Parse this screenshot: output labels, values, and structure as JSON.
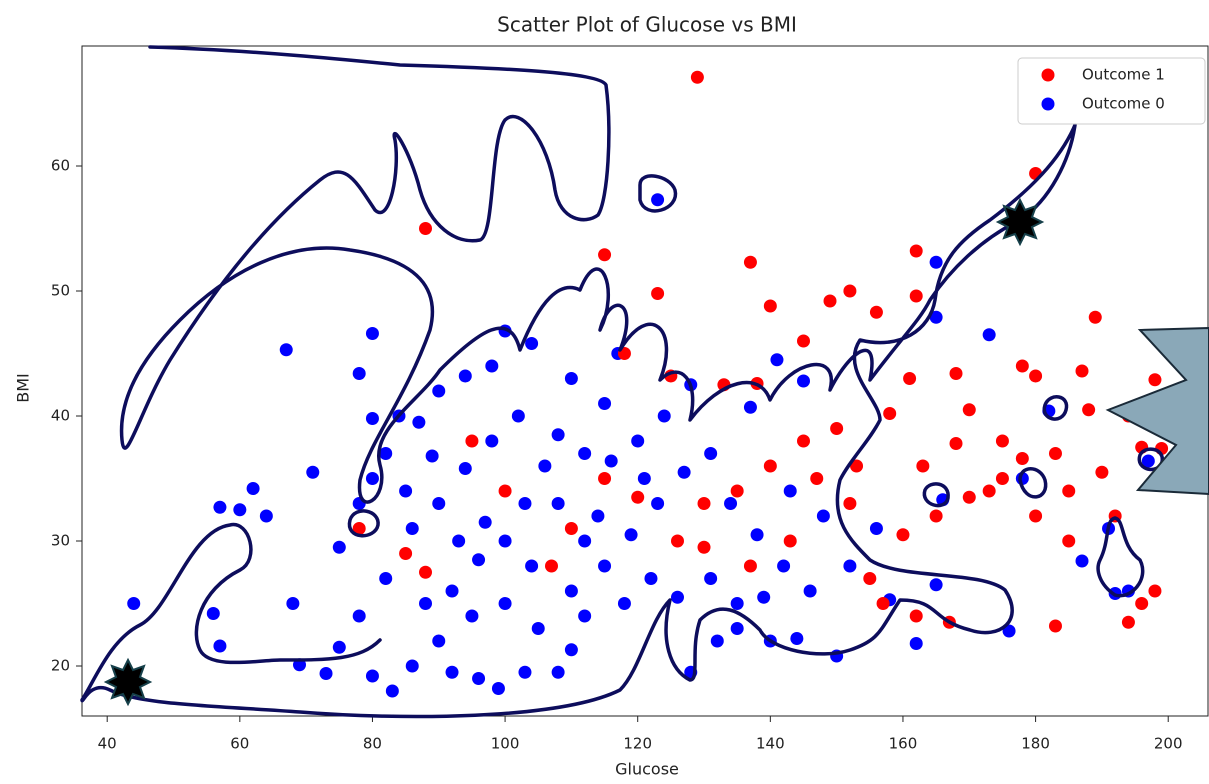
{
  "chart_data": {
    "type": "scatter",
    "title": "Scatter Plot of Glucose vs BMI",
    "x_label": "Glucose",
    "y_label": "BMI",
    "xlim": [
      36.2,
      206
    ],
    "ylim": [
      16,
      69.6
    ],
    "xticks": [
      40,
      60,
      80,
      100,
      120,
      140,
      160,
      180,
      200
    ],
    "yticks": [
      20,
      30,
      40,
      50,
      60
    ],
    "legend": "upper right",
    "series": [
      {
        "name": "Outcome 1",
        "color": "#ff0000",
        "x": [
          129,
          180,
          88,
          162,
          115,
          137,
          189,
          149,
          152,
          162,
          123,
          140,
          156,
          178,
          187,
          198,
          168,
          180,
          194,
          196,
          190,
          183,
          175,
          170,
          165,
          160,
          155,
          157,
          162,
          167,
          183,
          194,
          196,
          198,
          185,
          180,
          173,
          168,
          158,
          150,
          145,
          140,
          135,
          130,
          126,
          120,
          115,
          110,
          107,
          100,
          95,
          88,
          85,
          78,
          125,
          133,
          138,
          147,
          152,
          143,
          137,
          130,
          118,
          145,
          170,
          175,
          185,
          192,
          163,
          178,
          188,
          199,
          153,
          161
        ],
        "y": [
          67.1,
          59.4,
          55,
          53.2,
          52.9,
          52.3,
          47.9,
          49.2,
          50,
          49.6,
          49.8,
          48.8,
          48.3,
          44,
          43.6,
          42.9,
          43.4,
          43.2,
          40,
          37.5,
          35.5,
          37,
          35,
          33.5,
          32,
          30.5,
          27,
          25,
          24,
          23.5,
          23.2,
          23.5,
          25,
          26,
          30,
          32,
          34,
          37.8,
          40.2,
          39,
          38,
          36,
          34,
          33,
          30,
          33.5,
          35,
          31,
          28,
          34,
          38,
          27.5,
          29,
          31,
          43.2,
          42.5,
          42.6,
          35,
          33,
          30,
          28,
          29.5,
          45,
          46,
          40.5,
          38,
          34,
          32,
          36,
          36.6,
          40.5,
          37.4,
          36,
          43
        ]
      },
      {
        "name": "Outcome 0",
        "color": "#0000ff",
        "x": [
          123,
          165,
          165,
          173,
          67,
          80,
          78,
          80,
          71,
          62,
          57,
          60,
          64,
          44,
          56,
          57,
          68,
          69,
          73,
          75,
          78,
          80,
          83,
          86,
          90,
          92,
          96,
          99,
          103,
          108,
          110,
          100,
          95,
          105,
          112,
          118,
          122,
          126,
          128,
          132,
          135,
          140,
          144,
          150,
          162,
          165,
          176,
          178,
          166,
          187,
          192,
          194,
          191,
          197,
          182,
          145,
          141,
          137,
          128,
          117,
          115,
          110,
          104,
          100,
          98,
          94,
          90,
          87,
          84,
          82,
          80,
          78,
          75,
          82,
          86,
          90,
          94,
          98,
          102,
          106,
          108,
          112,
          115,
          119,
          123,
          127,
          131,
          134,
          138,
          142,
          146,
          148,
          152,
          156,
          100,
          104,
          96,
          92,
          88,
          110,
          114,
          120,
          124,
          108,
          103,
          97,
          93,
          112,
          116,
          121,
          89,
          85,
          131,
          135,
          139,
          143,
          158
        ],
        "y": [
          57.3,
          52.3,
          47.9,
          46.5,
          45.3,
          46.6,
          43.4,
          39.8,
          35.5,
          34.2,
          32.7,
          32.5,
          32,
          25,
          24.2,
          21.6,
          25,
          20.1,
          19.4,
          21.5,
          24,
          19.2,
          18,
          20,
          22,
          19.5,
          19,
          18.2,
          19.5,
          19.5,
          21.3,
          25,
          24,
          23,
          24,
          25,
          27,
          25.5,
          19.5,
          22,
          23,
          22,
          22.2,
          20.8,
          21.8,
          26.5,
          22.8,
          35,
          33.3,
          28.4,
          25.8,
          26,
          31,
          36.4,
          40.4,
          42.8,
          44.5,
          40.7,
          42.5,
          45,
          41,
          43,
          45.8,
          46.8,
          44,
          43.2,
          42,
          39.5,
          40,
          37,
          35,
          33,
          29.5,
          27,
          31,
          33,
          35.8,
          38,
          40,
          36,
          33,
          30,
          28,
          30.5,
          33,
          35.5,
          37,
          33,
          30.5,
          28,
          26,
          32,
          28,
          31,
          30,
          28,
          28.5,
          26,
          25,
          26,
          32,
          38,
          40,
          38.5,
          33,
          31.5,
          30,
          37,
          36.4,
          35,
          36.8,
          34,
          27,
          25,
          25.5,
          34,
          25.3
        ]
      }
    ]
  }
}
